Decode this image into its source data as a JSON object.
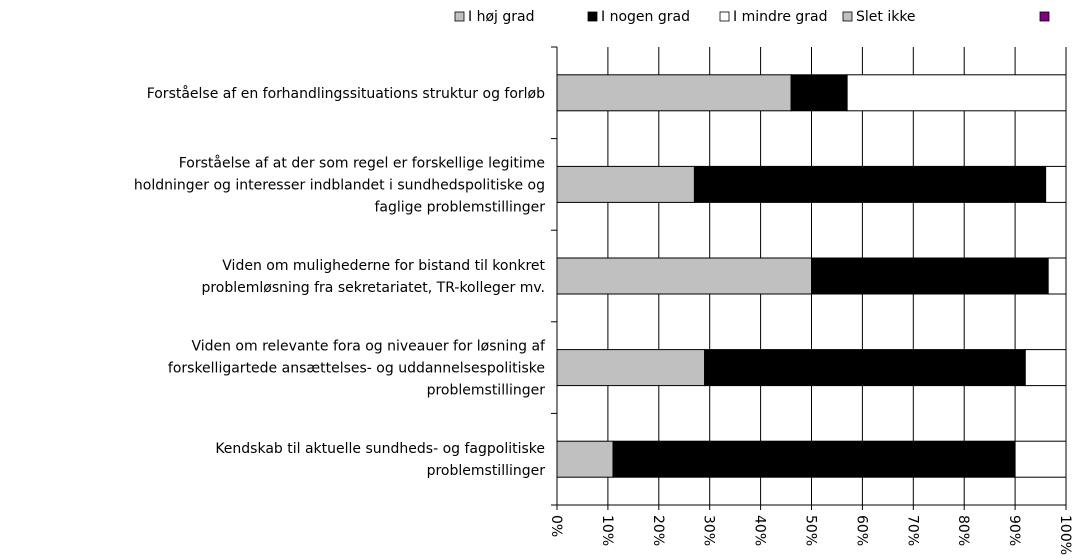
{
  "chart_data": {
    "type": "stacked-bar-horizontal",
    "categories": [
      [
        "Forståelse af en forhandlingssituations struktur og forløb"
      ],
      [
        "Forståelse af at der som regel er forskellige legitime",
        "holdninger og interesser indblandet i sundhedspolitiske og",
        "faglige problemstillinger"
      ],
      [
        "Viden om mulighederne for bistand til konkret",
        "problemløsning fra sekretariatet, TR-kolleger mv."
      ],
      [
        "Viden om relevante fora og niveauer for løsning af",
        "forskelligartede ansættelses- og uddannelsespolitiske",
        "problemstillinger"
      ],
      [
        "Kendskab til aktuelle sundheds- og fagpolitiske",
        "problemstillinger"
      ]
    ],
    "series": [
      {
        "name": "I høj grad",
        "color": "#c0c0c0",
        "values": [
          46,
          27,
          50,
          29,
          11
        ]
      },
      {
        "name": "I nogen grad",
        "color": "#000000",
        "values": [
          11,
          69,
          46.5,
          63,
          79
        ]
      },
      {
        "name": "I mindre grad",
        "color": "#ffffff",
        "values": [
          43,
          4,
          3.5,
          8,
          10
        ]
      },
      {
        "name": "Slet ikke",
        "color": "#c0c0c0",
        "values": [
          0,
          0,
          0,
          0,
          0
        ]
      }
    ],
    "xlim": [
      0,
      100
    ],
    "xticks": [
      {
        "value": 0,
        "label": "0%"
      },
      {
        "value": 10,
        "label": "10%"
      },
      {
        "value": 20,
        "label": "20%"
      },
      {
        "value": 30,
        "label": "30%"
      },
      {
        "value": 40,
        "label": "40%"
      },
      {
        "value": 50,
        "label": "50%"
      },
      {
        "value": 60,
        "label": "60%"
      },
      {
        "value": 70,
        "label": "70%"
      },
      {
        "value": 80,
        "label": "80%"
      },
      {
        "value": 90,
        "label": "90%"
      },
      {
        "value": 100,
        "label": "100%"
      }
    ],
    "grid": true
  }
}
